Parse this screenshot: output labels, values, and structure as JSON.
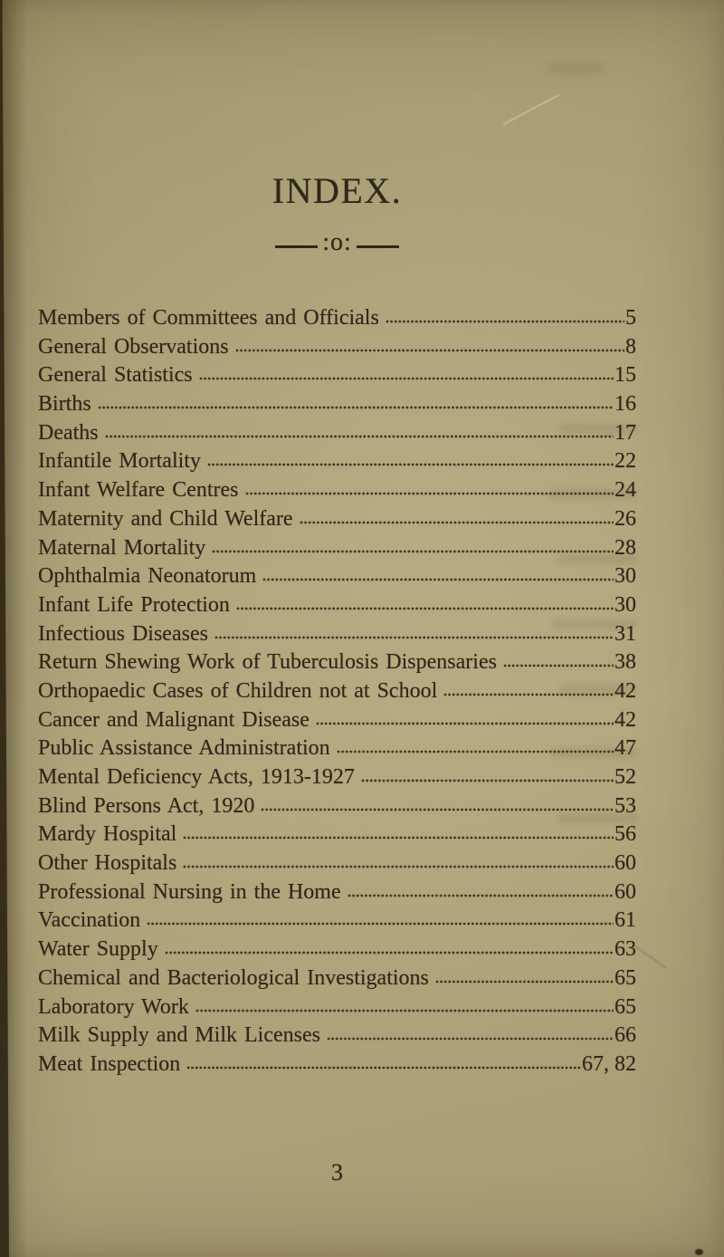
{
  "page": {
    "title": "INDEX.",
    "divider_label": ":o:",
    "folio": "3"
  },
  "index": {
    "entries": [
      {
        "label": "Members of Committees and Officials",
        "page": "5"
      },
      {
        "label": "General Observations",
        "page": "8"
      },
      {
        "label": "General Statistics",
        "page": "15"
      },
      {
        "label": "Births",
        "page": "16"
      },
      {
        "label": "Deaths",
        "page": "17"
      },
      {
        "label": "Infantile Mortality",
        "page": "22"
      },
      {
        "label": "Infant Welfare Centres",
        "page": "24"
      },
      {
        "label": "Maternity and Child Welfare",
        "page": "26"
      },
      {
        "label": "Maternal Mortality",
        "page": "28"
      },
      {
        "label": "Ophthalmia Neonatorum",
        "page": "30"
      },
      {
        "label": "Infant Life Protection",
        "page": "30"
      },
      {
        "label": "Infectious Diseases",
        "page": "31"
      },
      {
        "label": "Return Shewing Work of Tuberculosis Dispensaries",
        "page": "38"
      },
      {
        "label": "Orthopaedic Cases of Children not at School",
        "page": "42"
      },
      {
        "label": "Cancer and Malignant Disease",
        "page": "42"
      },
      {
        "label": "Public Assistance Administration",
        "page": "47"
      },
      {
        "label": "Mental Deficiency Acts, 1913-1927",
        "page": "52"
      },
      {
        "label": "Blind Persons Act, 1920",
        "page": "53"
      },
      {
        "label": "Mardy Hospital",
        "page": "56"
      },
      {
        "label": "Other Hospitals",
        "page": "60"
      },
      {
        "label": "Professional Nursing in the Home",
        "page": "60"
      },
      {
        "label": "Vaccination",
        "page": "61"
      },
      {
        "label": "Water Supply",
        "page": "63"
      },
      {
        "label": "Chemical and Bacteriological Investigations",
        "page": "65"
      },
      {
        "label": "Laboratory Work",
        "page": "65"
      },
      {
        "label": "Milk Supply and Milk Licenses",
        "page": "66"
      },
      {
        "label": "Meat Inspection",
        "page": "67, 82"
      }
    ]
  }
}
